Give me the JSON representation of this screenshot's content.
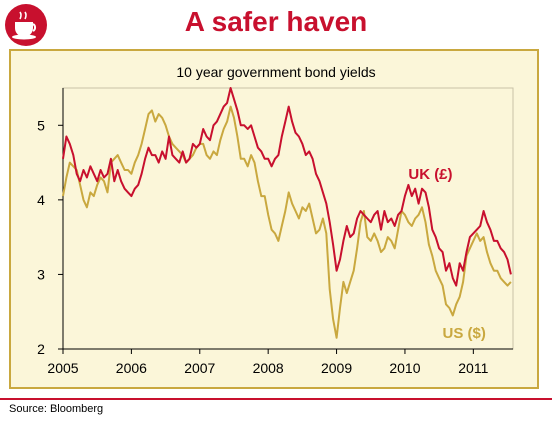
{
  "header": {
    "title": "A safer haven",
    "logo_icon": "coffee-cup-icon",
    "accent_color": "#c8102e"
  },
  "footer": {
    "source": "Source: Bloomberg"
  },
  "chart_data": {
    "type": "line",
    "title": "10 year government bond yields",
    "xlabel": "",
    "ylabel": "",
    "xlim": [
      2005.0,
      2011.58
    ],
    "ylim": [
      2,
      5.5
    ],
    "x_ticks": [
      "2005",
      "2006",
      "2007",
      "2008",
      "2009",
      "2010",
      "2011"
    ],
    "y_ticks": [
      "2",
      "3",
      "4",
      "5"
    ],
    "grid": false,
    "background_color": "#fbf6d9",
    "border_color": "#c9a83f",
    "series": [
      {
        "name": "UK (£)",
        "color": "#c8102e",
        "x": [
          2005.0,
          2005.05,
          2005.1,
          2005.15,
          2005.2,
          2005.25,
          2005.3,
          2005.35,
          2005.4,
          2005.45,
          2005.5,
          2005.55,
          2005.6,
          2005.65,
          2005.7,
          2005.75,
          2005.8,
          2005.85,
          2005.9,
          2005.95,
          2006.0,
          2006.05,
          2006.1,
          2006.15,
          2006.2,
          2006.25,
          2006.3,
          2006.35,
          2006.4,
          2006.45,
          2006.5,
          2006.55,
          2006.6,
          2006.65,
          2006.7,
          2006.75,
          2006.8,
          2006.85,
          2006.9,
          2006.95,
          2007.0,
          2007.05,
          2007.1,
          2007.15,
          2007.2,
          2007.25,
          2007.3,
          2007.35,
          2007.4,
          2007.45,
          2007.5,
          2007.55,
          2007.6,
          2007.65,
          2007.7,
          2007.75,
          2007.8,
          2007.85,
          2007.9,
          2007.95,
          2008.0,
          2008.05,
          2008.1,
          2008.15,
          2008.2,
          2008.25,
          2008.3,
          2008.35,
          2008.4,
          2008.45,
          2008.5,
          2008.55,
          2008.6,
          2008.65,
          2008.7,
          2008.75,
          2008.8,
          2008.85,
          2008.9,
          2008.95,
          2009.0,
          2009.05,
          2009.1,
          2009.15,
          2009.2,
          2009.25,
          2009.3,
          2009.35,
          2009.4,
          2009.45,
          2009.5,
          2009.55,
          2009.6,
          2009.65,
          2009.7,
          2009.75,
          2009.8,
          2009.85,
          2009.9,
          2009.95,
          2010.0,
          2010.05,
          2010.1,
          2010.15,
          2010.2,
          2010.25,
          2010.3,
          2010.35,
          2010.4,
          2010.45,
          2010.5,
          2010.55,
          2010.6,
          2010.65,
          2010.7,
          2010.75,
          2010.8,
          2010.85,
          2010.9,
          2010.95,
          2011.0,
          2011.05,
          2011.1,
          2011.15,
          2011.2,
          2011.25,
          2011.3,
          2011.35,
          2011.4,
          2011.45,
          2011.5,
          2011.55
        ],
        "values": [
          4.55,
          4.85,
          4.75,
          4.6,
          4.35,
          4.25,
          4.4,
          4.3,
          4.45,
          4.35,
          4.25,
          4.4,
          4.3,
          4.35,
          4.55,
          4.25,
          4.4,
          4.25,
          4.15,
          4.1,
          4.05,
          4.15,
          4.2,
          4.35,
          4.55,
          4.7,
          4.6,
          4.6,
          4.5,
          4.65,
          4.55,
          4.85,
          4.6,
          4.55,
          4.5,
          4.65,
          4.5,
          4.55,
          4.75,
          4.7,
          4.75,
          4.95,
          4.85,
          4.8,
          5.0,
          5.05,
          5.15,
          5.25,
          5.3,
          5.5,
          5.35,
          5.2,
          5.0,
          5.0,
          4.95,
          5.0,
          4.85,
          4.7,
          4.65,
          4.55,
          4.55,
          4.45,
          4.55,
          4.6,
          4.85,
          5.05,
          5.25,
          5.05,
          4.9,
          4.85,
          4.75,
          4.6,
          4.65,
          4.55,
          4.35,
          4.25,
          4.1,
          3.95,
          3.7,
          3.4,
          3.05,
          3.2,
          3.45,
          3.65,
          3.5,
          3.55,
          3.75,
          3.85,
          3.8,
          3.75,
          3.7,
          3.8,
          3.85,
          3.6,
          3.85,
          3.7,
          3.75,
          3.65,
          3.8,
          3.85,
          4.05,
          4.2,
          4.05,
          4.15,
          3.95,
          4.15,
          4.1,
          3.9,
          3.6,
          3.5,
          3.35,
          3.3,
          3.05,
          3.15,
          2.95,
          2.85,
          3.15,
          3.05,
          3.3,
          3.5,
          3.55,
          3.6,
          3.65,
          3.85,
          3.7,
          3.6,
          3.45,
          3.45,
          3.35,
          3.3,
          3.2,
          3.0
        ]
      },
      {
        "name": "US ($)",
        "color": "#c9a83f",
        "x": [
          2005.0,
          2005.05,
          2005.1,
          2005.15,
          2005.2,
          2005.25,
          2005.3,
          2005.35,
          2005.4,
          2005.45,
          2005.5,
          2005.55,
          2005.6,
          2005.65,
          2005.7,
          2005.75,
          2005.8,
          2005.85,
          2005.9,
          2005.95,
          2006.0,
          2006.05,
          2006.1,
          2006.15,
          2006.2,
          2006.25,
          2006.3,
          2006.35,
          2006.4,
          2006.45,
          2006.5,
          2006.55,
          2006.6,
          2006.65,
          2006.7,
          2006.75,
          2006.8,
          2006.85,
          2006.9,
          2006.95,
          2007.0,
          2007.05,
          2007.1,
          2007.15,
          2007.2,
          2007.25,
          2007.3,
          2007.35,
          2007.4,
          2007.45,
          2007.5,
          2007.55,
          2007.6,
          2007.65,
          2007.7,
          2007.75,
          2007.8,
          2007.85,
          2007.9,
          2007.95,
          2008.0,
          2008.05,
          2008.1,
          2008.15,
          2008.2,
          2008.25,
          2008.3,
          2008.35,
          2008.4,
          2008.45,
          2008.5,
          2008.55,
          2008.6,
          2008.65,
          2008.7,
          2008.75,
          2008.8,
          2008.85,
          2008.9,
          2008.95,
          2009.0,
          2009.05,
          2009.1,
          2009.15,
          2009.2,
          2009.25,
          2009.3,
          2009.35,
          2009.4,
          2009.45,
          2009.5,
          2009.55,
          2009.6,
          2009.65,
          2009.7,
          2009.75,
          2009.8,
          2009.85,
          2009.9,
          2009.95,
          2010.0,
          2010.05,
          2010.1,
          2010.15,
          2010.2,
          2010.25,
          2010.3,
          2010.35,
          2010.4,
          2010.45,
          2010.5,
          2010.55,
          2010.6,
          2010.65,
          2010.7,
          2010.75,
          2010.8,
          2010.85,
          2010.9,
          2010.95,
          2011.0,
          2011.05,
          2011.1,
          2011.15,
          2011.2,
          2011.25,
          2011.3,
          2011.35,
          2011.4,
          2011.45,
          2011.5,
          2011.55
        ],
        "values": [
          4.05,
          4.3,
          4.5,
          4.45,
          4.4,
          4.2,
          4.0,
          3.9,
          4.1,
          4.05,
          4.2,
          4.3,
          4.25,
          4.1,
          4.5,
          4.55,
          4.6,
          4.5,
          4.4,
          4.4,
          4.35,
          4.5,
          4.6,
          4.75,
          4.95,
          5.15,
          5.2,
          5.05,
          5.15,
          5.1,
          5.0,
          4.85,
          4.75,
          4.7,
          4.65,
          4.6,
          4.5,
          4.55,
          4.6,
          4.7,
          4.75,
          4.75,
          4.6,
          4.55,
          4.65,
          4.6,
          4.8,
          4.95,
          5.05,
          5.25,
          5.1,
          4.85,
          4.55,
          4.55,
          4.45,
          4.6,
          4.5,
          4.25,
          4.05,
          4.05,
          3.8,
          3.6,
          3.55,
          3.45,
          3.65,
          3.85,
          4.1,
          3.95,
          3.85,
          3.75,
          3.9,
          3.85,
          3.95,
          3.75,
          3.55,
          3.6,
          3.75,
          3.55,
          2.8,
          2.4,
          2.15,
          2.55,
          2.9,
          2.75,
          2.9,
          3.05,
          3.35,
          3.7,
          3.85,
          3.5,
          3.45,
          3.55,
          3.45,
          3.3,
          3.35,
          3.5,
          3.45,
          3.35,
          3.6,
          3.85,
          3.8,
          3.7,
          3.65,
          3.75,
          3.8,
          3.9,
          3.7,
          3.4,
          3.25,
          3.05,
          2.95,
          2.85,
          2.6,
          2.55,
          2.45,
          2.6,
          2.7,
          2.9,
          3.25,
          3.35,
          3.45,
          3.55,
          3.45,
          3.5,
          3.3,
          3.15,
          3.05,
          3.05,
          2.95,
          2.9,
          2.85,
          2.9
        ]
      }
    ],
    "annotations": [
      {
        "text": "UK (£)",
        "x": 2010.05,
        "y": 4.28,
        "color": "#c8102e"
      },
      {
        "text": "US ($)",
        "x": 2010.55,
        "y": 2.15,
        "color": "#c9a83f"
      }
    ]
  }
}
